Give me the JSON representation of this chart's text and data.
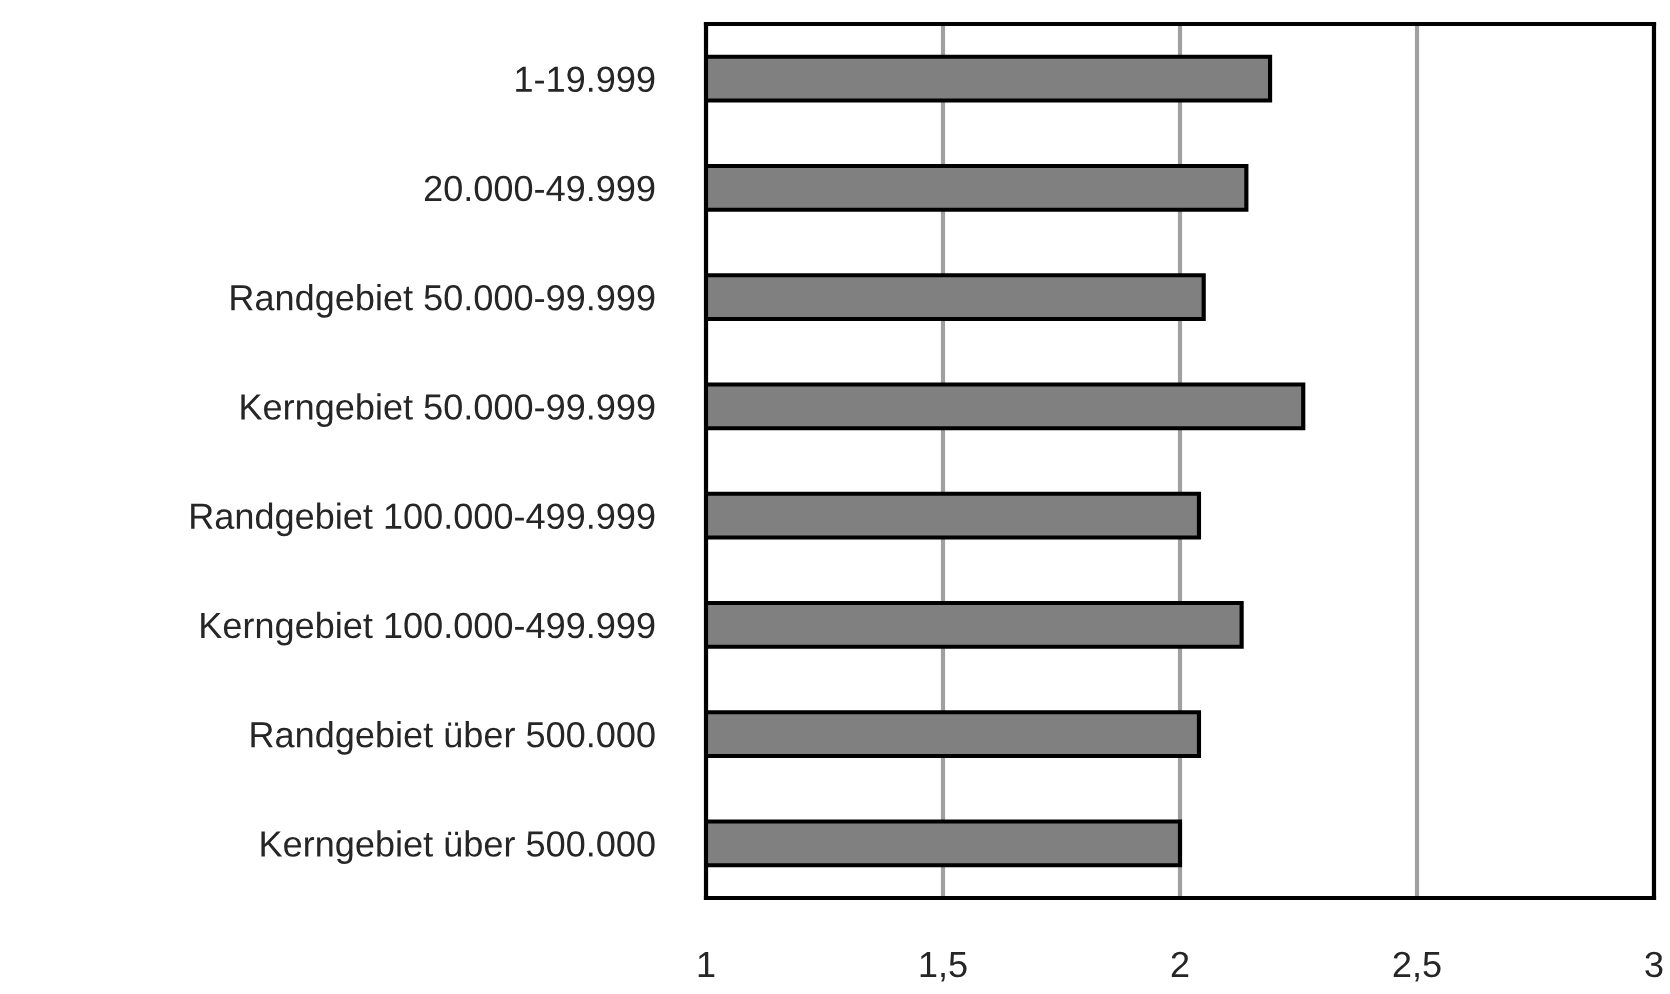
{
  "chart_data": {
    "type": "bar",
    "orientation": "horizontal",
    "categories": [
      "1-19.999",
      "20.000-49.999",
      "Randgebiet 50.000-99.999",
      "Kerngebiet 50.000-99.999",
      "Randgebiet 100.000-499.999",
      "Kerngebiet 100.000-499.999",
      "Randgebiet über 500.000",
      "Kerngebiet über 500.000"
    ],
    "values": [
      2.19,
      2.14,
      2.05,
      2.26,
      2.04,
      2.13,
      2.04,
      2.0
    ],
    "color": "#808080",
    "xlim": [
      1,
      3
    ],
    "xticks": [
      1,
      {
        "value": 1.5,
        "label": "1,5"
      },
      2,
      {
        "value": 2.5,
        "label": "2,5"
      },
      3
    ],
    "grid": "x"
  }
}
